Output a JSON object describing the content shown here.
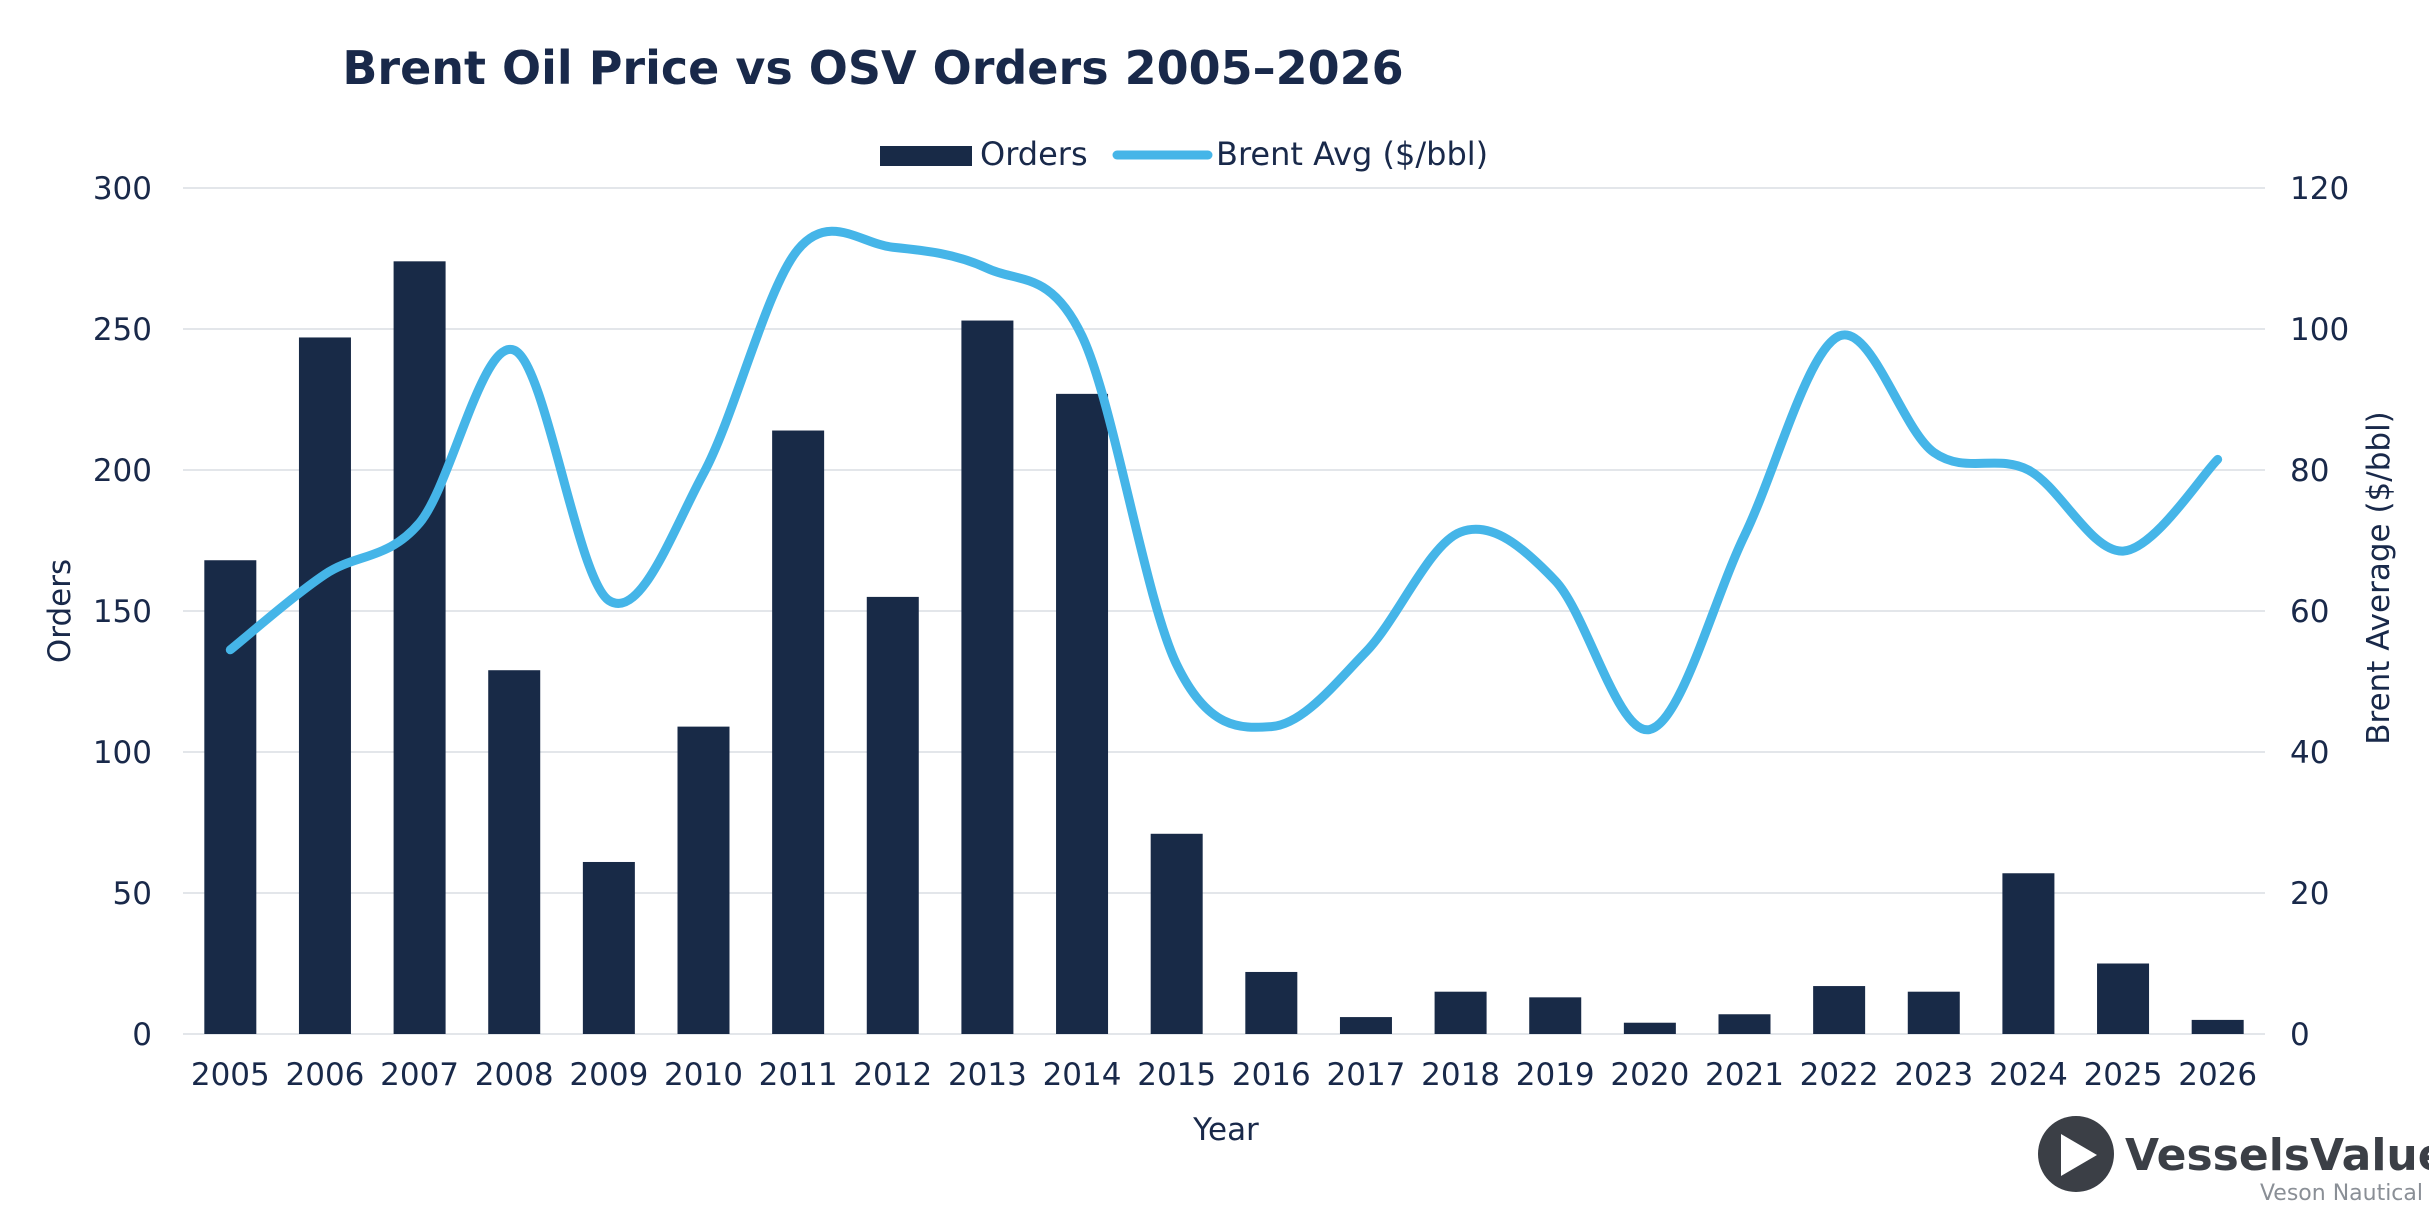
{
  "chart_data": {
    "type": "bar",
    "title": "Brent Oil Price vs OSV Orders 2005–2026",
    "xlabel": "Year",
    "ylabel": "Orders",
    "ylabel_right": "Brent Average ($/bbl)",
    "ylim": [
      0,
      300
    ],
    "ylim_right": [
      0,
      120
    ],
    "yticks": [
      0,
      50,
      100,
      150,
      200,
      250,
      300
    ],
    "yticks_right": [
      0,
      20,
      40,
      60,
      80,
      100,
      120
    ],
    "grid": true,
    "legend_position": "top-center",
    "categories": [
      "2005",
      "2006",
      "2007",
      "2008",
      "2009",
      "2010",
      "2011",
      "2012",
      "2013",
      "2014",
      "2015",
      "2016",
      "2017",
      "2018",
      "2019",
      "2020",
      "2021",
      "2022",
      "2023",
      "2024",
      "2025",
      "2026"
    ],
    "series": [
      {
        "name": "Orders",
        "type": "bar",
        "axis": "left",
        "color": "#182a47",
        "values": [
          168,
          247,
          274,
          129,
          61,
          109,
          214,
          155,
          253,
          227,
          71,
          22,
          6,
          15,
          13,
          4,
          7,
          17,
          15,
          57,
          25,
          5
        ]
      },
      {
        "name": "Brent Avg ($/bbl)",
        "type": "line",
        "axis": "right",
        "color": "#45b5e8",
        "values": [
          54.5,
          65.2,
          72.5,
          97.0,
          61.5,
          79.5,
          111.3,
          111.6,
          108.6,
          99.0,
          52.4,
          43.6,
          54.2,
          71.2,
          64.3,
          43.2,
          70.7,
          99.0,
          82.5,
          80.0,
          68.5,
          81.5
        ]
      }
    ]
  },
  "branding": {
    "logo_main": "VesselsValue",
    "logo_sub": "Veson Nautical"
  }
}
